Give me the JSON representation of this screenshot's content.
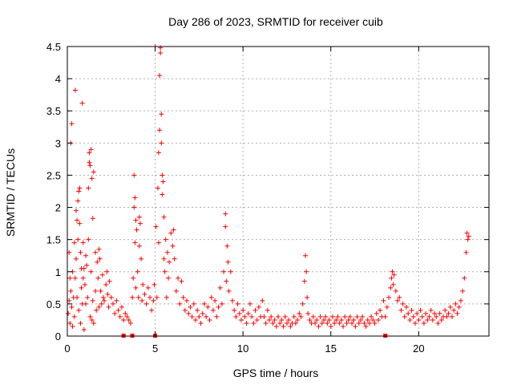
{
  "chart_data": {
    "type": "scatter",
    "title": "Day 286 of 2023, SRMTID for receiver cuib",
    "xlabel": "GPS time / hours",
    "ylabel": "SRMTID / TECUs",
    "xlim": [
      0,
      24
    ],
    "ylim": [
      0,
      4.5
    ],
    "grid": true,
    "marker": "+",
    "xticks": [
      0,
      5,
      10,
      15,
      20
    ],
    "xtick_labels": [
      "0",
      "5",
      "10",
      "15",
      "20"
    ],
    "yticks": [
      0,
      0.5,
      1,
      1.5,
      2,
      2.5,
      3,
      3.5,
      4,
      4.5
    ],
    "ytick_labels": [
      "0",
      "0.5",
      "1",
      "1.5",
      "2",
      "2.5",
      "3",
      "3.5",
      "4",
      "4.5"
    ],
    "series": [
      {
        "name": "SRMTID",
        "color": "#ff0000",
        "points": [
          [
            0.05,
            0.35
          ],
          [
            0.1,
            0.55
          ],
          [
            0.1,
            1.3
          ],
          [
            0.15,
            0.9
          ],
          [
            0.15,
            0.2
          ],
          [
            0.2,
            3.0
          ],
          [
            0.2,
            0.7
          ],
          [
            0.25,
            3.3
          ],
          [
            0.25,
            0.45
          ],
          [
            0.3,
            1.0
          ],
          [
            0.3,
            0.15
          ],
          [
            0.35,
            0.6
          ],
          [
            0.4,
            1.45
          ],
          [
            0.4,
            0.3
          ],
          [
            0.45,
            3.82
          ],
          [
            0.45,
            0.9
          ],
          [
            0.5,
            1.95
          ],
          [
            0.5,
            1.2
          ],
          [
            0.55,
            1.8
          ],
          [
            0.55,
            0.6
          ],
          [
            0.6,
            2.1
          ],
          [
            0.6,
            1.5
          ],
          [
            0.65,
            2.25
          ],
          [
            0.65,
            0.4
          ],
          [
            0.7,
            2.3
          ],
          [
            0.7,
            1.75
          ],
          [
            0.75,
            1.3
          ],
          [
            0.75,
            0.2
          ],
          [
            0.8,
            1.05
          ],
          [
            0.8,
            0.75
          ],
          [
            0.85,
            3.62
          ],
          [
            0.85,
            0.5
          ],
          [
            0.9,
            1.45
          ],
          [
            0.9,
            0.9
          ],
          [
            0.95,
            1.05
          ],
          [
            0.95,
            0.1
          ],
          [
            1.0,
            0.8
          ],
          [
            1.05,
            1.25
          ],
          [
            1.05,
            0.5
          ],
          [
            1.1,
            1.1
          ],
          [
            1.15,
            0.6
          ],
          [
            1.2,
            2.3
          ],
          [
            1.2,
            1.5
          ],
          [
            1.25,
            2.85
          ],
          [
            1.25,
            2.7
          ],
          [
            1.3,
            2.65
          ],
          [
            1.3,
            0.3
          ],
          [
            1.35,
            2.9
          ],
          [
            1.35,
            1.0
          ],
          [
            1.4,
            2.45
          ],
          [
            1.4,
            0.25
          ],
          [
            1.45,
            1.83
          ],
          [
            1.45,
            0.55
          ],
          [
            1.5,
            2.55
          ],
          [
            1.5,
            0.2
          ],
          [
            1.6,
            1.3
          ],
          [
            1.6,
            0.7
          ],
          [
            1.65,
            0.4
          ],
          [
            1.7,
            1.15
          ],
          [
            1.75,
            0.9
          ],
          [
            1.8,
            1.35
          ],
          [
            1.8,
            0.45
          ],
          [
            1.85,
            1.2
          ],
          [
            1.9,
            0.7
          ],
          [
            1.95,
            0.5
          ],
          [
            2.0,
            0.95
          ],
          [
            2.05,
            0.6
          ],
          [
            2.1,
            0.55
          ],
          [
            2.2,
            0.8
          ],
          [
            2.25,
            1.0
          ],
          [
            2.3,
            0.65
          ],
          [
            2.35,
            0.45
          ],
          [
            2.4,
            0.85
          ],
          [
            2.5,
            0.6
          ],
          [
            2.6,
            0.5
          ],
          [
            2.7,
            0.35
          ],
          [
            2.8,
            0.55
          ],
          [
            2.9,
            0.4
          ],
          [
            3.0,
            0.3
          ],
          [
            3.1,
            0.45
          ],
          [
            3.2,
            0.25
          ],
          [
            3.3,
            0.35
          ],
          [
            3.4,
            0.3
          ],
          [
            3.5,
            0.25
          ],
          [
            3.6,
            0.2
          ],
          [
            3.7,
            0.6
          ],
          [
            3.75,
            0.9
          ],
          [
            3.8,
            2.0
          ],
          [
            3.8,
            2.5
          ],
          [
            3.85,
            2.15
          ],
          [
            3.85,
            1.45
          ],
          [
            3.9,
            1.8
          ],
          [
            3.9,
            0.75
          ],
          [
            3.95,
            1.65
          ],
          [
            4.0,
            1.0
          ],
          [
            4.05,
            0.6
          ],
          [
            4.1,
            1.85
          ],
          [
            4.1,
            1.4
          ],
          [
            4.15,
            1.75
          ],
          [
            4.2,
            1.2
          ],
          [
            4.25,
            0.55
          ],
          [
            4.3,
            0.8
          ],
          [
            4.4,
            0.65
          ],
          [
            4.5,
            0.5
          ],
          [
            4.6,
            0.75
          ],
          [
            4.7,
            0.6
          ],
          [
            4.8,
            0.4
          ],
          [
            4.9,
            0.55
          ],
          [
            4.95,
            0.8
          ],
          [
            5.0,
            4.5
          ],
          [
            5.05,
            1.7
          ],
          [
            5.1,
            0.6
          ],
          [
            5.15,
            2.3
          ],
          [
            5.2,
            2.85
          ],
          [
            5.2,
            1.45
          ],
          [
            5.25,
            4.05
          ],
          [
            5.25,
            3.2
          ],
          [
            5.3,
            4.4
          ],
          [
            5.3,
            4.48
          ],
          [
            5.35,
            3.45
          ],
          [
            5.35,
            3.0
          ],
          [
            5.4,
            2.2
          ],
          [
            5.4,
            2.5
          ],
          [
            5.45,
            2.4
          ],
          [
            5.5,
            1.85
          ],
          [
            5.5,
            1.2
          ],
          [
            5.55,
            1.0
          ],
          [
            5.6,
            1.5
          ],
          [
            5.65,
            0.6
          ],
          [
            5.7,
            1.3
          ],
          [
            5.75,
            0.9
          ],
          [
            5.8,
            1.15
          ],
          [
            5.9,
            1.6
          ],
          [
            6.0,
            1.4
          ],
          [
            6.05,
            1.65
          ],
          [
            6.1,
            1.2
          ],
          [
            6.2,
            0.7
          ],
          [
            6.3,
            0.9
          ],
          [
            6.4,
            0.5
          ],
          [
            6.5,
            0.85
          ],
          [
            6.6,
            0.6
          ],
          [
            6.7,
            0.4
          ],
          [
            6.8,
            0.55
          ],
          [
            6.9,
            0.35
          ],
          [
            7.0,
            0.45
          ],
          [
            7.1,
            0.3
          ],
          [
            7.2,
            0.5
          ],
          [
            7.3,
            0.25
          ],
          [
            7.4,
            0.4
          ],
          [
            7.5,
            0.3
          ],
          [
            7.6,
            0.2
          ],
          [
            7.7,
            0.35
          ],
          [
            7.8,
            0.5
          ],
          [
            7.9,
            0.3
          ],
          [
            8.0,
            0.45
          ],
          [
            8.1,
            0.25
          ],
          [
            8.2,
            0.6
          ],
          [
            8.3,
            0.4
          ],
          [
            8.4,
            0.55
          ],
          [
            8.5,
            0.3
          ],
          [
            8.6,
            0.45
          ],
          [
            8.7,
            0.75
          ],
          [
            8.8,
            0.5
          ],
          [
            8.9,
            1.0
          ],
          [
            9.0,
            1.9
          ],
          [
            9.0,
            1.7
          ],
          [
            9.05,
            0.85
          ],
          [
            9.1,
            1.4
          ],
          [
            9.15,
            1.15
          ],
          [
            9.2,
            0.7
          ],
          [
            9.3,
            1.0
          ],
          [
            9.4,
            0.55
          ],
          [
            9.5,
            0.4
          ],
          [
            9.6,
            0.3
          ],
          [
            9.7,
            0.5
          ],
          [
            9.8,
            0.35
          ],
          [
            9.9,
            0.25
          ],
          [
            10.0,
            0.4
          ],
          [
            10.1,
            0.3
          ],
          [
            10.2,
            0.2
          ],
          [
            10.3,
            0.35
          ],
          [
            10.4,
            0.5
          ],
          [
            10.5,
            0.3
          ],
          [
            10.6,
            0.2
          ],
          [
            10.7,
            0.4
          ],
          [
            10.8,
            0.25
          ],
          [
            10.9,
            0.45
          ],
          [
            11.0,
            0.3
          ],
          [
            11.1,
            0.55
          ],
          [
            11.2,
            0.3
          ],
          [
            11.3,
            0.2
          ],
          [
            11.4,
            0.4
          ],
          [
            11.5,
            0.25
          ],
          [
            11.6,
            0.3
          ],
          [
            11.7,
            0.2
          ],
          [
            11.8,
            0.25
          ],
          [
            11.9,
            0.15
          ],
          [
            12.0,
            0.3
          ],
          [
            12.1,
            0.2
          ],
          [
            12.2,
            0.25
          ],
          [
            12.3,
            0.15
          ],
          [
            12.4,
            0.3
          ],
          [
            12.5,
            0.2
          ],
          [
            12.6,
            0.25
          ],
          [
            12.7,
            0.15
          ],
          [
            12.8,
            0.2
          ],
          [
            12.9,
            0.3
          ],
          [
            13.0,
            0.2
          ],
          [
            13.1,
            0.25
          ],
          [
            13.2,
            0.35
          ],
          [
            13.3,
            0.3
          ],
          [
            13.4,
            0.5
          ],
          [
            13.5,
            0.85
          ],
          [
            13.55,
            1.25
          ],
          [
            13.6,
            1.0
          ],
          [
            13.65,
            0.6
          ],
          [
            13.7,
            0.35
          ],
          [
            13.8,
            0.25
          ],
          [
            13.9,
            0.2
          ],
          [
            14.0,
            0.3
          ],
          [
            14.1,
            0.2
          ],
          [
            14.2,
            0.25
          ],
          [
            14.3,
            0.15
          ],
          [
            14.4,
            0.3
          ],
          [
            14.5,
            0.2
          ],
          [
            14.6,
            0.25
          ],
          [
            14.7,
            0.3
          ],
          [
            14.8,
            0.2
          ],
          [
            14.9,
            0.25
          ],
          [
            15.0,
            0.15
          ],
          [
            15.1,
            0.3
          ],
          [
            15.2,
            0.2
          ],
          [
            15.3,
            0.25
          ],
          [
            15.4,
            0.3
          ],
          [
            15.5,
            0.2
          ],
          [
            15.6,
            0.25
          ],
          [
            15.7,
            0.15
          ],
          [
            15.8,
            0.3
          ],
          [
            15.9,
            0.2
          ],
          [
            16.0,
            0.25
          ],
          [
            16.1,
            0.3
          ],
          [
            16.2,
            0.2
          ],
          [
            16.3,
            0.25
          ],
          [
            16.4,
            0.15
          ],
          [
            16.5,
            0.3
          ],
          [
            16.6,
            0.2
          ],
          [
            16.7,
            0.25
          ],
          [
            16.8,
            0.3
          ],
          [
            16.9,
            0.2
          ],
          [
            17.0,
            0.15
          ],
          [
            17.1,
            0.25
          ],
          [
            17.2,
            0.2
          ],
          [
            17.3,
            0.3
          ],
          [
            17.4,
            0.25
          ],
          [
            17.5,
            0.2
          ],
          [
            17.6,
            0.35
          ],
          [
            17.7,
            0.25
          ],
          [
            17.8,
            0.4
          ],
          [
            17.9,
            0.3
          ],
          [
            18.0,
            0.55
          ],
          [
            18.1,
            0.3
          ],
          [
            18.2,
            0.45
          ],
          [
            18.3,
            0.6
          ],
          [
            18.4,
            0.75
          ],
          [
            18.45,
            0.9
          ],
          [
            18.5,
            1.0
          ],
          [
            18.55,
            0.8
          ],
          [
            18.6,
            0.95
          ],
          [
            18.7,
            0.7
          ],
          [
            18.8,
            0.55
          ],
          [
            18.9,
            0.6
          ],
          [
            19.0,
            0.4
          ],
          [
            19.1,
            0.5
          ],
          [
            19.2,
            0.3
          ],
          [
            19.3,
            0.45
          ],
          [
            19.4,
            0.35
          ],
          [
            19.5,
            0.25
          ],
          [
            19.6,
            0.4
          ],
          [
            19.7,
            0.3
          ],
          [
            19.8,
            0.2
          ],
          [
            19.9,
            0.35
          ],
          [
            20.0,
            0.25
          ],
          [
            20.1,
            0.4
          ],
          [
            20.2,
            0.3
          ],
          [
            20.3,
            0.2
          ],
          [
            20.4,
            0.35
          ],
          [
            20.5,
            0.25
          ],
          [
            20.6,
            0.3
          ],
          [
            20.7,
            0.4
          ],
          [
            20.8,
            0.25
          ],
          [
            20.9,
            0.35
          ],
          [
            21.0,
            0.3
          ],
          [
            21.1,
            0.2
          ],
          [
            21.2,
            0.35
          ],
          [
            21.3,
            0.25
          ],
          [
            21.4,
            0.3
          ],
          [
            21.5,
            0.4
          ],
          [
            21.6,
            0.3
          ],
          [
            21.7,
            0.35
          ],
          [
            21.8,
            0.45
          ],
          [
            21.9,
            0.3
          ],
          [
            22.0,
            0.4
          ],
          [
            22.1,
            0.5
          ],
          [
            22.2,
            0.35
          ],
          [
            22.3,
            0.45
          ],
          [
            22.4,
            0.55
          ],
          [
            22.5,
            0.7
          ],
          [
            22.6,
            0.9
          ],
          [
            22.7,
            1.3
          ],
          [
            22.75,
            1.6
          ],
          [
            22.8,
            1.5
          ],
          [
            22.85,
            1.55
          ]
        ]
      }
    ],
    "gap_markers": {
      "color": "#ff0000",
      "x": [
        3.2,
        3.7,
        5.0,
        18.1
      ]
    }
  }
}
